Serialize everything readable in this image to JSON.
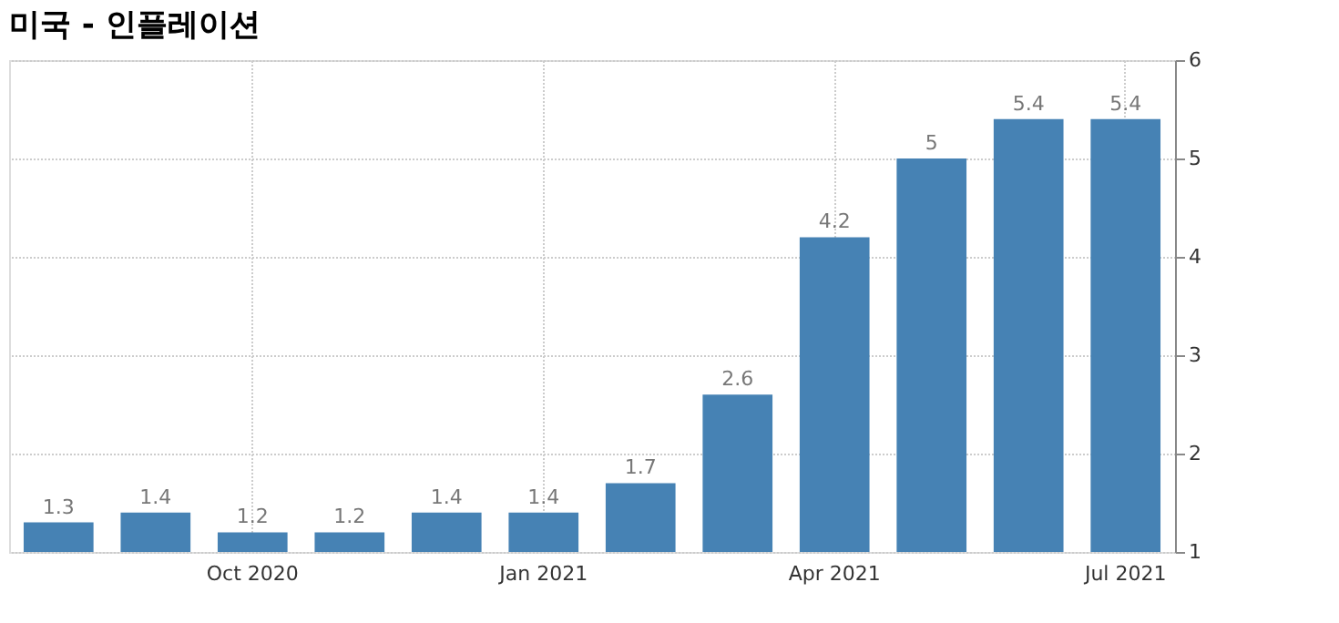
{
  "chart_data": {
    "type": "bar",
    "title": "미국 - 인플레이션",
    "categories": [
      null,
      null,
      "Oct 2020",
      null,
      null,
      "Jan 2021",
      null,
      null,
      "Apr 2021",
      null,
      null,
      "Jul 2021"
    ],
    "values": [
      1.3,
      1.4,
      1.2,
      1.2,
      1.4,
      1.4,
      1.7,
      2.6,
      4.2,
      5,
      5.4,
      5.4
    ],
    "color": "#4682b4",
    "ylim": [
      1,
      6
    ],
    "yticks": [
      1,
      2,
      3,
      4,
      5,
      6
    ],
    "grid": true,
    "data_labels": true
  }
}
